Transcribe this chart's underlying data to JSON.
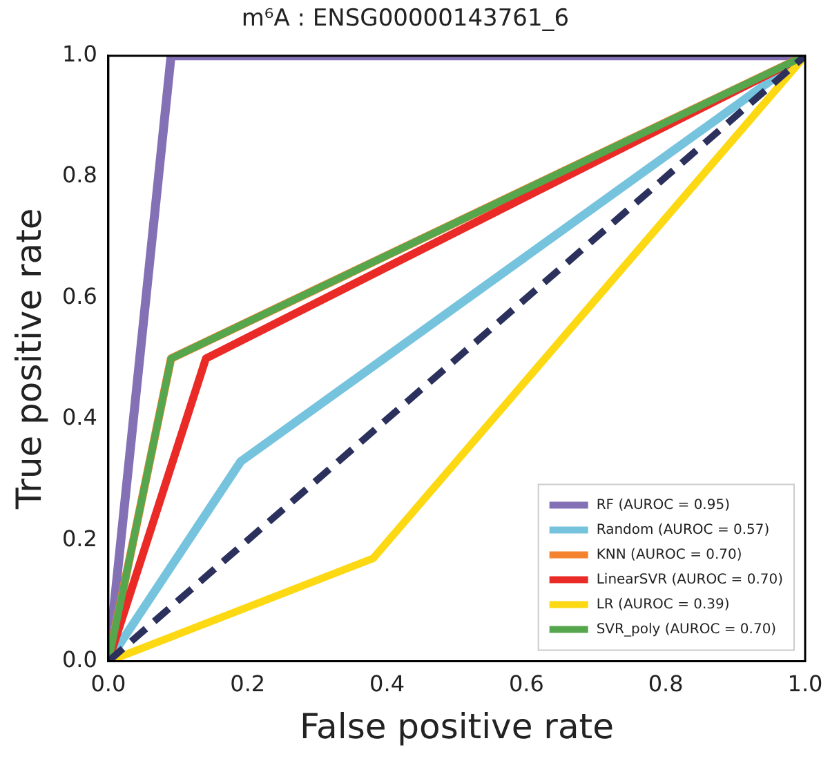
{
  "chart_data": {
    "type": "line",
    "title": "m⁶A : ENSG00000143761_6",
    "xlabel": "False positive rate",
    "ylabel": "True positive rate",
    "xlim": [
      0,
      1
    ],
    "ylim": [
      0,
      1
    ],
    "xticks": [
      {
        "value": 0,
        "label": "0.0"
      },
      {
        "value": 0.2,
        "label": "0.2"
      },
      {
        "value": 0.4,
        "label": "0.4"
      },
      {
        "value": 0.6,
        "label": "0.6"
      },
      {
        "value": 0.8,
        "label": "0.8"
      },
      {
        "value": 1,
        "label": "1.0"
      }
    ],
    "yticks": [
      {
        "value": 0,
        "label": "0.0"
      },
      {
        "value": 0.2,
        "label": "0.2"
      },
      {
        "value": 0.4,
        "label": "0.4"
      },
      {
        "value": 0.6,
        "label": "0.6"
      },
      {
        "value": 0.8,
        "label": "0.8"
      },
      {
        "value": 1,
        "label": "1.0"
      }
    ],
    "grid": false,
    "legend": "bottom right",
    "marker": "none",
    "series": [
      {
        "name": "RF (AUROC = 0.95)",
        "color": "#8470b5",
        "x": [
          0,
          0.09,
          1
        ],
        "values": [
          0,
          1,
          1
        ]
      },
      {
        "name": "Random (AUROC = 0.57)",
        "color": "#76c3de",
        "x": [
          0,
          0.19,
          1
        ],
        "values": [
          0,
          0.33,
          1
        ]
      },
      {
        "name": "KNN (AUROC = 0.70)",
        "color": "#f5822f",
        "x": [
          0,
          0.09,
          1
        ],
        "values": [
          0,
          0.5,
          1
        ]
      },
      {
        "name": "LinearSVR (AUROC = 0.70)",
        "color": "#ea2a27",
        "x": [
          0,
          0.14,
          1
        ],
        "values": [
          0,
          0.5,
          1
        ]
      },
      {
        "name": "LR (AUROC = 0.39)",
        "color": "#fcd913",
        "x": [
          0,
          0.38,
          1
        ],
        "values": [
          0,
          0.17,
          1
        ]
      },
      {
        "name": "SVR_poly (AUROC = 0.70)",
        "color": "#56a64d",
        "x": [
          0,
          0.09,
          1
        ],
        "values": [
          0,
          0.5,
          1
        ]
      },
      {
        "color": "#2b305c",
        "x": [
          0,
          1
        ],
        "values": [
          0,
          1
        ],
        "line_style": "dashed"
      }
    ]
  }
}
